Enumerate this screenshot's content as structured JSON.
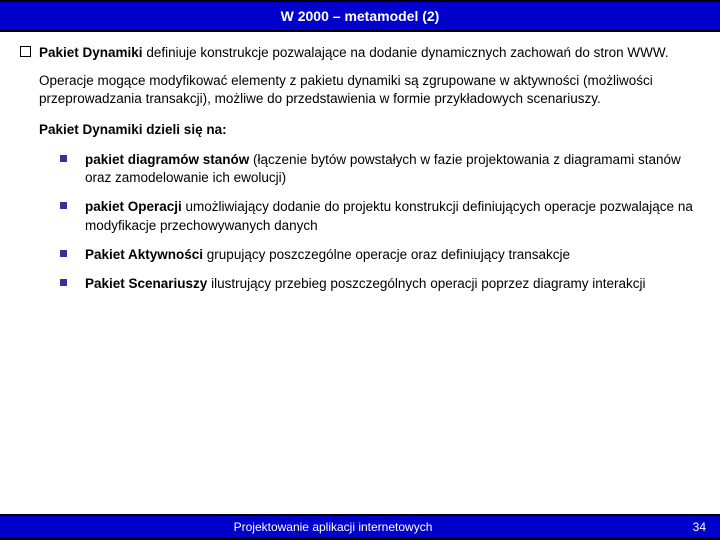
{
  "header": {
    "title": "W 2000 – metamodel (2)"
  },
  "main": {
    "lead_bold": "Pakiet Dynamiki",
    "lead_rest": " definiuje konstrukcje pozwalające na dodanie dynamicznych zachowań do stron WWW.",
    "para2": "Operacje mogące modyfikować elementy z pakietu dynamiki są zgrupowane w aktywności (możliwości przeprowadzania transakcji), możliwe do przedstawienia w formie przykładowych scenariuszy.",
    "sub_heading": "Pakiet Dynamiki dzieli się na:",
    "items": [
      {
        "bold": "pakiet diagramów stanów",
        "rest": "  (łączenie bytów powstałych w fazie projektowania z diagramami stanów oraz zamodelowanie ich ewolucji)"
      },
      {
        "bold": "pakiet Operacji",
        "rest": " umożliwiający dodanie do projektu konstrukcji definiujących operacje pozwalające na modyfikacje przechowywanych danych"
      },
      {
        "bold": "Pakiet Aktywności",
        "rest": " grupujący poszczególne operacje oraz definiujący transakcje"
      },
      {
        "bold": "Pakiet  Scenariuszy",
        "rest": " ilustrujący przebieg poszczególnych operacji poprzez diagramy interakcji"
      }
    ]
  },
  "footer": {
    "center": "Projektowanie aplikacji internetowych",
    "page": "34"
  },
  "colors": {
    "header_bg": "#0000cc",
    "bullet": "#333399"
  }
}
